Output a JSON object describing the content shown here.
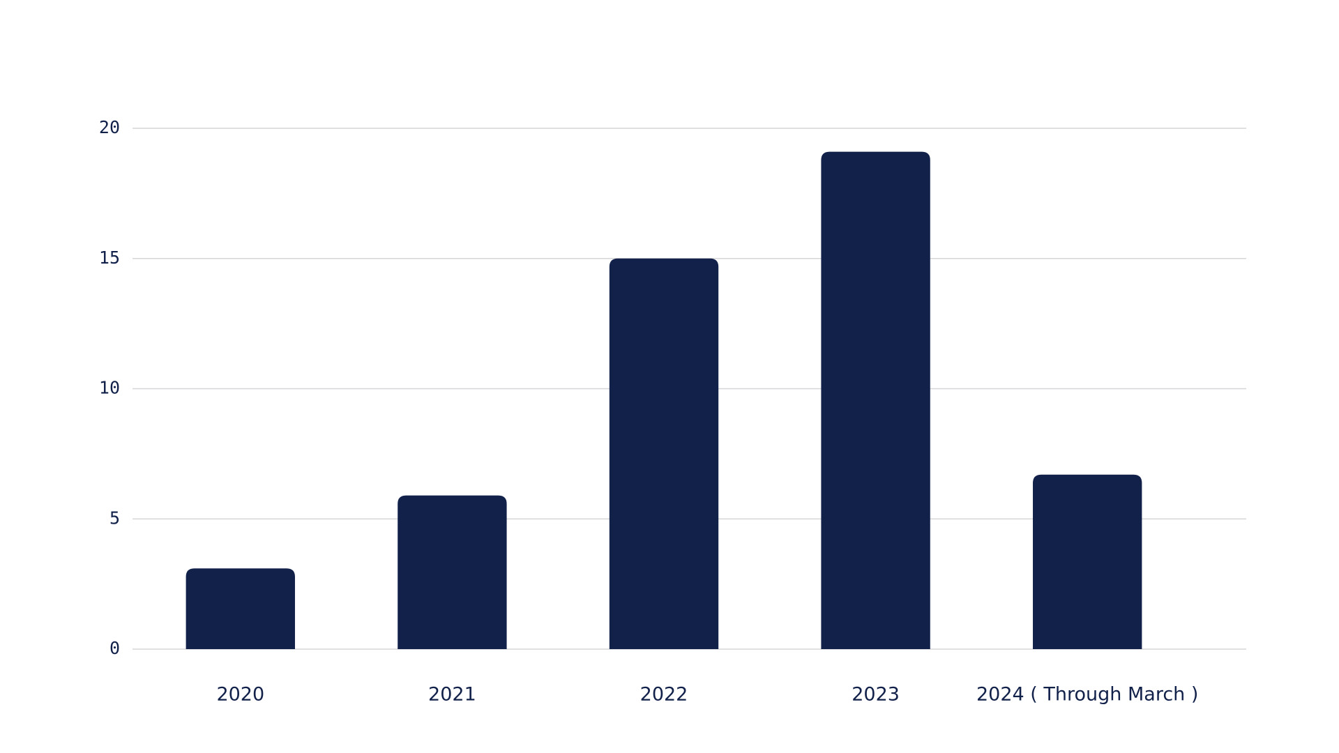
{
  "chart_data": {
    "type": "bar",
    "categories": [
      "2020",
      "2021",
      "2022",
      "2023",
      "2024 ( Through March )"
    ],
    "values": [
      3.1,
      5.9,
      15,
      19.1,
      6.7
    ],
    "color": "#12214a",
    "ylim": [
      0,
      20
    ],
    "yticks": [
      0,
      5,
      10,
      15,
      20
    ],
    "grid": true
  }
}
